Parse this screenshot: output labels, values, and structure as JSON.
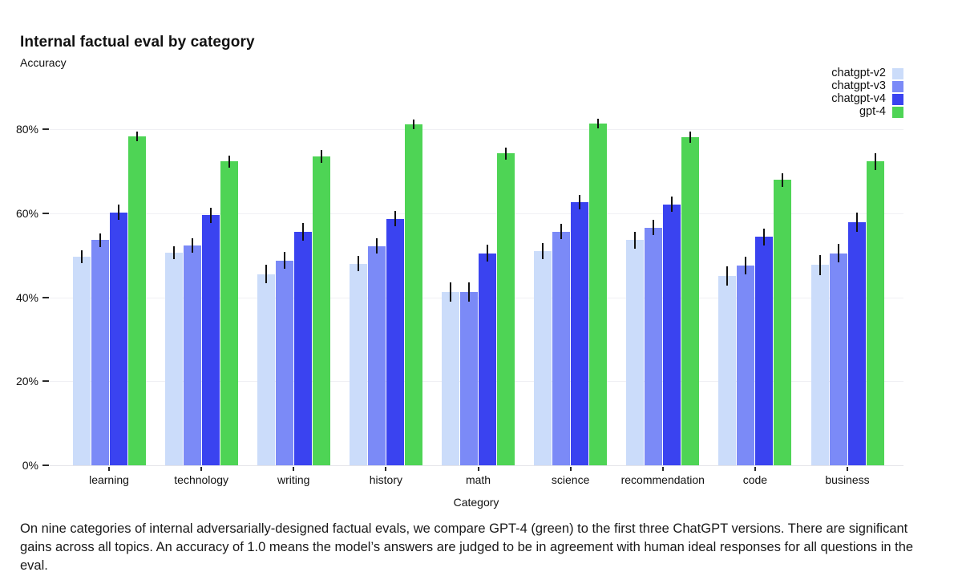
{
  "header": {
    "title": "Internal factual eval by category",
    "subtitle": "Accuracy"
  },
  "caption": "On nine categories of internal adversarially-designed factual evals, we compare GPT-4 (green) to the first three ChatGPT versions. There are significant gains across all topics. An accuracy of 1.0 means the model’s answers are judged to be in agreement with human ideal responses for all questions in the eval.",
  "chart_data": {
    "type": "bar",
    "title": "Internal factual eval by category",
    "ylabel": "Accuracy",
    "xlabel": "Category",
    "values_unit": "percent",
    "categories": [
      "learning",
      "technology",
      "writing",
      "history",
      "math",
      "science",
      "recommendation",
      "code",
      "business"
    ],
    "series": [
      {
        "name": "chatgpt-v2",
        "color": "#cbdcfa",
        "values": [
          49.7,
          50.6,
          45.5,
          48.0,
          41.3,
          51.0,
          53.6,
          45.1,
          47.7
        ],
        "errors": [
          1.5,
          1.6,
          2.2,
          1.8,
          2.3,
          1.9,
          2.0,
          2.3,
          2.4
        ]
      },
      {
        "name": "chatgpt-v3",
        "color": "#7b8af7",
        "values": [
          53.6,
          52.3,
          48.7,
          52.2,
          41.3,
          55.6,
          56.6,
          47.6,
          50.5
        ],
        "errors": [
          1.6,
          1.7,
          2.0,
          1.8,
          2.3,
          1.8,
          1.9,
          2.1,
          2.2
        ]
      },
      {
        "name": "chatgpt-v4",
        "color": "#3a43f0",
        "values": [
          60.2,
          59.5,
          55.6,
          58.7,
          50.5,
          62.7,
          62.1,
          54.4,
          57.9
        ],
        "errors": [
          1.8,
          1.8,
          2.1,
          1.9,
          2.1,
          1.7,
          1.8,
          2.0,
          2.3
        ]
      },
      {
        "name": "gpt-4",
        "color": "#4ed455",
        "values": [
          78.3,
          72.3,
          73.5,
          81.1,
          74.2,
          81.3,
          78.1,
          67.9,
          72.3
        ],
        "errors": [
          1.1,
          1.4,
          1.6,
          1.1,
          1.5,
          1.1,
          1.3,
          1.6,
          2.0
        ]
      }
    ],
    "y_ticks_percent": [
      0,
      20,
      40,
      60,
      80
    ],
    "ylim_percent": [
      0,
      84
    ],
    "grid": true,
    "legend_position": "top-right",
    "error_bar_color": "#111111"
  }
}
